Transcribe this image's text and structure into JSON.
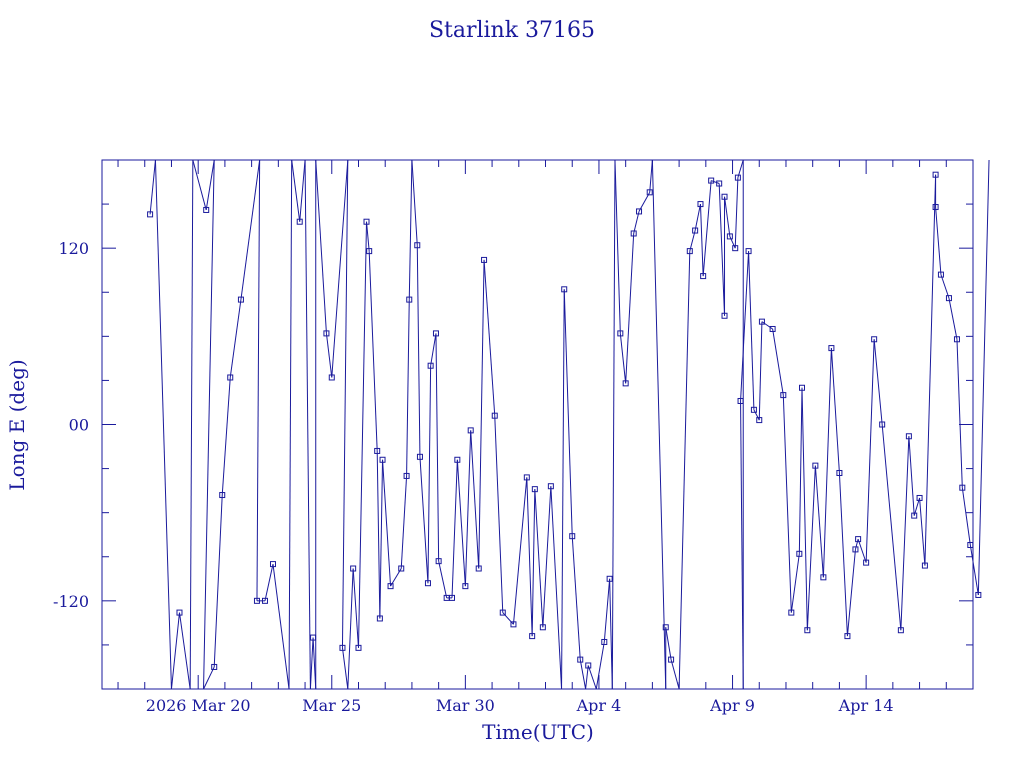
{
  "chart_data": {
    "type": "line",
    "title": "Starlink 37165",
    "xlabel": "Time(UTC)",
    "ylabel": "Long E (deg)",
    "x_ticks": [
      {
        "value": 2.0,
        "label": "2026 Mar 20"
      },
      {
        "value": 7.0,
        "label": "Mar 25"
      },
      {
        "value": 12.0,
        "label": "Mar 30"
      },
      {
        "value": 17.0,
        "label": "Apr  4"
      },
      {
        "value": 22.0,
        "label": "Apr  9"
      },
      {
        "value": 27.0,
        "label": "Apr 14"
      }
    ],
    "y_ticks": [
      {
        "value": -120,
        "label": "-120"
      },
      {
        "value": 0,
        "label": "00"
      },
      {
        "value": 120,
        "label": "120"
      }
    ],
    "xlim": [
      -1.6,
      31.0
    ],
    "ylim": [
      -180,
      180
    ],
    "x_unit": "days from 2026 Mar 18",
    "grid": false,
    "line_color": "#1a1a9c",
    "series": [
      {
        "name": "",
        "points": [
          [
            0.2,
            143
          ],
          [
            0.4,
            180
          ],
          [
            1.0,
            -180
          ],
          [
            1.3,
            -128
          ],
          [
            1.7,
            -180
          ],
          [
            1.8,
            180
          ],
          [
            2.3,
            146
          ],
          [
            2.6,
            180
          ],
          [
            2.2,
            -180
          ],
          [
            2.6,
            -165
          ],
          [
            2.9,
            -48
          ],
          [
            3.2,
            32
          ],
          [
            3.6,
            85
          ],
          [
            4.3,
            180
          ],
          [
            4.2,
            -120
          ],
          [
            4.5,
            -120
          ],
          [
            4.8,
            -95
          ],
          [
            5.4,
            -180
          ],
          [
            5.5,
            180
          ],
          [
            5.8,
            138
          ],
          [
            6.0,
            180
          ],
          [
            6.2,
            -180
          ],
          [
            6.3,
            -145
          ],
          [
            6.4,
            -180
          ],
          [
            6.4,
            180
          ],
          [
            6.8,
            62
          ],
          [
            7.0,
            32
          ],
          [
            7.6,
            180
          ],
          [
            7.4,
            -152
          ],
          [
            7.6,
            -180
          ],
          [
            7.8,
            -98
          ],
          [
            8.0,
            -152
          ],
          [
            8.3,
            138
          ],
          [
            8.4,
            118
          ],
          [
            8.7,
            -18
          ],
          [
            8.8,
            -132
          ],
          [
            8.9,
            -24
          ],
          [
            9.2,
            -110
          ],
          [
            9.6,
            -98
          ],
          [
            9.8,
            -35
          ],
          [
            9.9,
            85
          ],
          [
            10.0,
            180
          ],
          [
            10.2,
            122
          ],
          [
            10.3,
            -22
          ],
          [
            10.6,
            -108
          ],
          [
            10.7,
            40
          ],
          [
            10.9,
            62
          ],
          [
            11.0,
            -93
          ],
          [
            11.3,
            -118
          ],
          [
            11.5,
            -118
          ],
          [
            11.7,
            -24
          ],
          [
            12.0,
            -110
          ],
          [
            12.2,
            -4
          ],
          [
            12.5,
            -98
          ],
          [
            12.7,
            112
          ],
          [
            13.1,
            6
          ],
          [
            13.4,
            -128
          ],
          [
            13.8,
            -136
          ],
          [
            14.3,
            -36
          ],
          [
            14.5,
            -144
          ],
          [
            14.6,
            -44
          ],
          [
            14.9,
            -138
          ],
          [
            15.2,
            -42
          ],
          [
            15.6,
            -180
          ],
          [
            15.7,
            92
          ],
          [
            16.0,
            -76
          ],
          [
            16.3,
            -160
          ],
          [
            16.5,
            -180
          ],
          [
            16.6,
            -164
          ],
          [
            16.9,
            -180
          ],
          [
            17.2,
            -148
          ],
          [
            17.4,
            -105
          ],
          [
            17.5,
            -180
          ],
          [
            17.6,
            180
          ],
          [
            17.8,
            62
          ],
          [
            18.0,
            28
          ],
          [
            18.3,
            130
          ],
          [
            18.5,
            145
          ],
          [
            18.9,
            158
          ],
          [
            19.0,
            180
          ],
          [
            19.5,
            -180
          ],
          [
            19.5,
            -138
          ],
          [
            19.7,
            -160
          ],
          [
            20.0,
            -180
          ],
          [
            20.4,
            118
          ],
          [
            20.6,
            132
          ],
          [
            20.8,
            150
          ],
          [
            20.9,
            101
          ],
          [
            21.2,
            166
          ],
          [
            21.5,
            164
          ],
          [
            21.7,
            74
          ],
          [
            21.7,
            155
          ],
          [
            21.9,
            128
          ],
          [
            22.1,
            120
          ],
          [
            22.2,
            168
          ],
          [
            22.4,
            180
          ],
          [
            22.4,
            -180
          ],
          [
            22.3,
            16
          ],
          [
            22.6,
            118
          ],
          [
            22.8,
            10
          ],
          [
            23.0,
            3
          ],
          [
            23.1,
            70
          ],
          [
            23.5,
            65
          ],
          [
            23.9,
            20
          ],
          [
            24.2,
            -128
          ],
          [
            24.5,
            -88
          ],
          [
            24.6,
            25
          ],
          [
            24.8,
            -140
          ],
          [
            25.1,
            -28
          ],
          [
            25.4,
            -104
          ],
          [
            25.7,
            52
          ],
          [
            26.0,
            -33
          ],
          [
            26.3,
            -144
          ],
          [
            26.6,
            -85
          ],
          [
            26.7,
            -78
          ],
          [
            27.0,
            -94
          ],
          [
            27.3,
            58
          ],
          [
            27.6,
            0
          ],
          [
            28.3,
            -140
          ],
          [
            28.6,
            -8
          ],
          [
            28.8,
            -62
          ],
          [
            29.0,
            -50
          ],
          [
            29.2,
            -96
          ],
          [
            29.6,
            170
          ],
          [
            29.6,
            148
          ],
          [
            29.8,
            102
          ],
          [
            30.1,
            86
          ],
          [
            30.4,
            58
          ],
          [
            30.6,
            -43
          ],
          [
            30.9,
            -82
          ],
          [
            31.2,
            -116
          ],
          [
            31.6,
            180
          ]
        ]
      }
    ]
  }
}
